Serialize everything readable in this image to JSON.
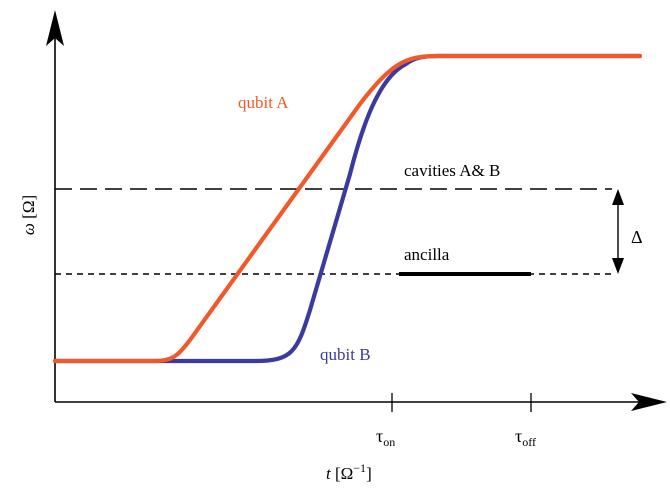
{
  "axes": {
    "y_label_symbol": "ω",
    "y_label_unit": "[Ω]",
    "x_label_symbol": "t",
    "x_label_unit": "[Ω",
    "x_label_exp": "−1",
    "x_label_close": "]"
  },
  "ticks": {
    "tau_on_base": "τ",
    "tau_on_sub": "on",
    "tau_off_base": "τ",
    "tau_off_sub": "off"
  },
  "labels": {
    "qubit_a": "qubit A",
    "qubit_b": "qubit B",
    "cavities": "cavities A& B",
    "ancilla": "ancilla",
    "delta": "Δ"
  },
  "colors": {
    "qubit_a": "#f05a2a",
    "qubit_b": "#3a3aa0",
    "lines": "#000000"
  }
}
